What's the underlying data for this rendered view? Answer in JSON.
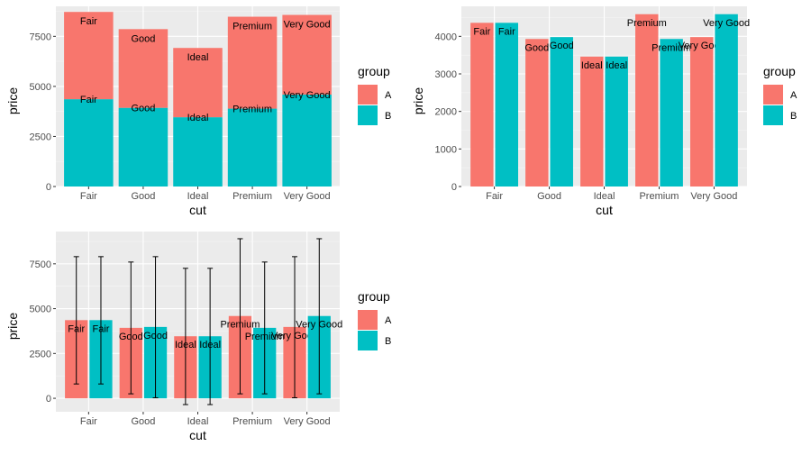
{
  "colors": {
    "A": "#F8766D",
    "B": "#00BFC4",
    "panel": "#EBEBEB",
    "grid_major": "#FFFFFF",
    "grid_minor": "#F5F5F5",
    "tick_text": "#4D4D4D",
    "errorbar": "#000000"
  },
  "chart_data": [
    {
      "type": "bar",
      "position": "stack",
      "categories": [
        "Fair",
        "Good",
        "Ideal",
        "Premium",
        "Very Good"
      ],
      "series": [
        {
          "name": "A",
          "values": [
            4360,
            3930,
            3460,
            4590,
            3980
          ]
        },
        {
          "name": "B",
          "values": [
            4360,
            3930,
            3460,
            3890,
            4590
          ]
        }
      ],
      "bar_labels": [
        "Fair",
        "Good",
        "Ideal",
        "Premium",
        "Very Good"
      ],
      "xlabel": "cut",
      "ylabel": "price",
      "ylim": [
        0,
        9000
      ],
      "yticks": [
        0,
        2500,
        5000,
        7500
      ],
      "legend": {
        "title": "group",
        "entries": [
          "A",
          "B"
        ],
        "placement": "right"
      },
      "grid": true
    },
    {
      "type": "bar",
      "position": "dodge",
      "categories": [
        "Fair",
        "Good",
        "Ideal",
        "Premium",
        "Very Good"
      ],
      "series": [
        {
          "name": "A",
          "values": [
            4360,
            3930,
            3460,
            4590,
            3980
          ]
        },
        {
          "name": "B",
          "values": [
            4360,
            3980,
            3460,
            3930,
            4590
          ]
        }
      ],
      "bar_labels": [
        "Fair",
        "Good",
        "Ideal",
        "Premium",
        "Very Good"
      ],
      "xlabel": "cut",
      "ylabel": "price",
      "ylim": [
        0,
        4800
      ],
      "yticks": [
        0,
        1000,
        2000,
        3000,
        4000
      ],
      "legend": {
        "title": "group",
        "entries": [
          "A",
          "B"
        ],
        "placement": "right"
      },
      "grid": true
    },
    {
      "type": "bar",
      "position": "dodge",
      "errorbars": true,
      "categories": [
        "Fair",
        "Good",
        "Ideal",
        "Premium",
        "Very Good"
      ],
      "series": [
        {
          "name": "A",
          "values": [
            4360,
            3930,
            3460,
            4590,
            3980
          ],
          "err_low": [
            800,
            250,
            -350,
            250,
            30
          ],
          "err_high": [
            7900,
            7600,
            7250,
            8900,
            7900
          ]
        },
        {
          "name": "B",
          "values": [
            4360,
            3980,
            3460,
            3930,
            4590
          ],
          "err_low": [
            800,
            30,
            -350,
            250,
            250
          ],
          "err_high": [
            7900,
            7900,
            7250,
            7600,
            8900
          ]
        }
      ],
      "bar_labels": [
        "Fair",
        "Good",
        "Ideal",
        "Premium",
        "Very Good"
      ],
      "xlabel": "cut",
      "ylabel": "price",
      "ylim": [
        -750,
        9300
      ],
      "yticks": [
        0,
        2500,
        5000,
        7500
      ],
      "legend": {
        "title": "group",
        "entries": [
          "A",
          "B"
        ],
        "placement": "right"
      },
      "grid": true
    }
  ]
}
